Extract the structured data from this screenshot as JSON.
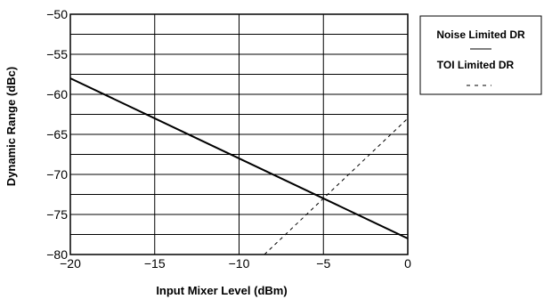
{
  "chart_data": {
    "type": "line",
    "xlabel": "Input Mixer Level (dBm)",
    "ylabel": "Dynamic Range (dBc)",
    "xlim": [
      -20,
      0
    ],
    "ylim": [
      -80,
      -50
    ],
    "x_ticks": [
      -20,
      -15,
      -10,
      -5,
      0
    ],
    "x_tick_labels": [
      "−20",
      "−15",
      "−10",
      "−5",
      "0"
    ],
    "y_ticks": [
      -50,
      -55,
      -60,
      -65,
      -70,
      -75,
      -80
    ],
    "y_tick_labels": [
      "−50",
      "−55",
      "−60",
      "−65",
      "−70",
      "−75",
      "−80"
    ],
    "grid": true,
    "legend_position": "right",
    "series": [
      {
        "name": "Noise Limited DR",
        "style": "solid",
        "color": "#000000",
        "x": [
          -20,
          0
        ],
        "y": [
          -58,
          -78
        ]
      },
      {
        "name": "TOI  Limited DR",
        "style": "dashed",
        "color": "#000000",
        "x": [
          -8.5,
          0
        ],
        "y": [
          -80,
          -63
        ]
      }
    ]
  }
}
